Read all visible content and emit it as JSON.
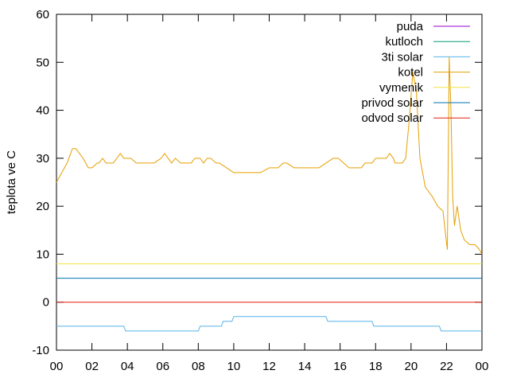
{
  "chart_data": {
    "type": "line",
    "title": "",
    "xlabel": "",
    "ylabel": "teplota ve C",
    "x_tick_labels": [
      "00",
      "02",
      "04",
      "06",
      "08",
      "10",
      "12",
      "14",
      "16",
      "18",
      "20",
      "22",
      "00"
    ],
    "xlim_hours": [
      0,
      24
    ],
    "ylim": [
      -10,
      60
    ],
    "y_ticks": [
      -10,
      0,
      10,
      20,
      30,
      40,
      50,
      60
    ],
    "grid": false,
    "legend_position": "top-right",
    "series": [
      {
        "name": "puda",
        "color": "#9400d3",
        "x": [],
        "y": []
      },
      {
        "name": "kutloch",
        "color": "#009e73",
        "x": [],
        "y": []
      },
      {
        "name": "3ti solar",
        "color": "#56b4e9",
        "x": [
          0,
          3.8,
          3.9,
          8.0,
          8.1,
          9.3,
          9.4,
          9.9,
          10.0,
          15.2,
          15.3,
          17.8,
          17.9,
          21.6,
          21.7,
          24
        ],
        "y": [
          -5,
          -5,
          -6,
          -6,
          -5,
          -5,
          -4,
          -4,
          -3,
          -3,
          -4,
          -4,
          -5,
          -5,
          -6,
          -6
        ]
      },
      {
        "name": "kotel",
        "color": "#e69f00",
        "x": [
          0,
          0.3,
          0.6,
          0.9,
          1.1,
          1.5,
          1.8,
          2.0,
          2.3,
          2.4,
          2.6,
          2.8,
          3.0,
          3.2,
          3.4,
          3.6,
          3.8,
          4.2,
          4.5,
          5.0,
          5.5,
          5.9,
          6.1,
          6.3,
          6.5,
          6.7,
          7.0,
          7.3,
          7.6,
          7.8,
          8.1,
          8.3,
          8.5,
          8.7,
          9.0,
          9.2,
          9.6,
          10.0,
          11.0,
          11.5,
          12.0,
          12.5,
          12.8,
          13.0,
          13.4,
          13.8,
          14.2,
          14.6,
          14.8,
          15.2,
          15.6,
          15.9,
          16.2,
          16.5,
          16.9,
          17.2,
          17.4,
          17.8,
          18.0,
          18.2,
          18.4,
          18.6,
          18.8,
          19.0,
          19.1,
          19.3,
          19.5,
          19.7,
          19.9,
          20.1,
          20.3,
          20.5,
          20.8,
          21.2,
          21.5,
          21.8,
          21.95,
          22.05,
          22.15,
          22.25,
          22.35,
          22.45,
          22.6,
          22.8,
          23.0,
          23.3,
          23.6,
          23.85,
          24
        ],
        "y": [
          25,
          27,
          29,
          32,
          32,
          30,
          28,
          28,
          29,
          29,
          30,
          29,
          29,
          29,
          30,
          31,
          30,
          30,
          29,
          29,
          29,
          30,
          31,
          30,
          29,
          30,
          29,
          29,
          29,
          30,
          30,
          29,
          30,
          30,
          29,
          29,
          28,
          27,
          27,
          27,
          28,
          28,
          29,
          29,
          28,
          28,
          28,
          28,
          28,
          29,
          30,
          30,
          29,
          28,
          28,
          28,
          29,
          29,
          30,
          30,
          30,
          30,
          31,
          30,
          29,
          29,
          29,
          30,
          38,
          48,
          44,
          30,
          24,
          22,
          20,
          19,
          14,
          11,
          51,
          40,
          22,
          16,
          20,
          15,
          13,
          12,
          12,
          11,
          10
        ]
      },
      {
        "name": "vymenik",
        "color": "#f0e442",
        "x": [
          0,
          24
        ],
        "y": [
          8,
          8
        ]
      },
      {
        "name": "privod solar",
        "color": "#0072b2",
        "x": [
          0,
          24
        ],
        "y": [
          5,
          5
        ]
      },
      {
        "name": "odvod solar",
        "color": "#e51e10",
        "x": [
          0,
          24
        ],
        "y": [
          0,
          0
        ]
      }
    ]
  }
}
